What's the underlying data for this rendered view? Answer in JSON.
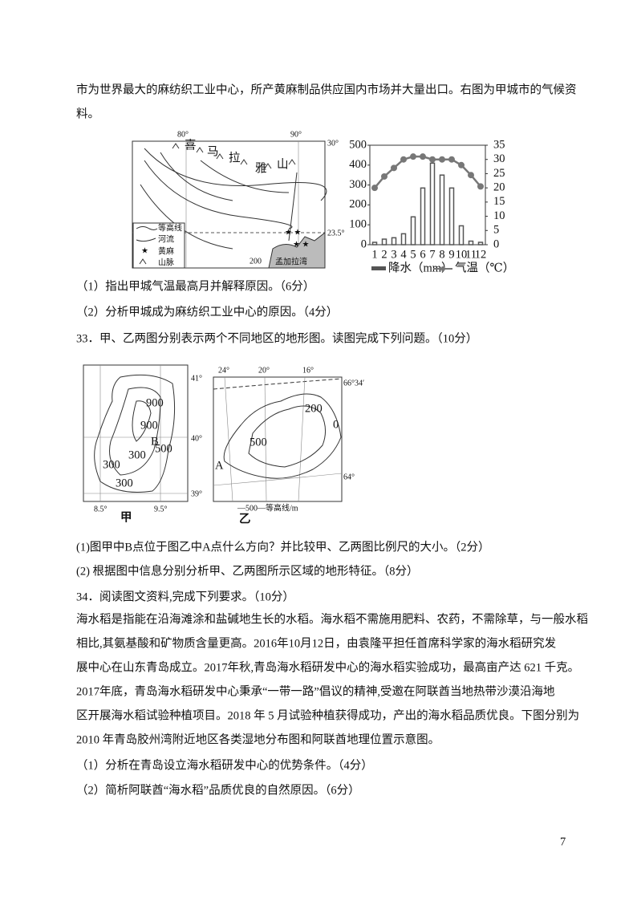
{
  "text_top": [
    "市为世界最大的麻纺织工业中心，所产黄麻制品供应国内市场并大量出口。右图为甲城市的气候资",
    "料。"
  ],
  "figure1": {
    "map": {
      "lon_labels": [
        "80°",
        "90°"
      ],
      "lat_labels": [
        "30°",
        "23.5°"
      ],
      "mountain_label": [
        "喜",
        "马",
        "拉",
        "雅",
        "山"
      ],
      "contour_label": "200",
      "bay": "孟加拉湾",
      "legend": [
        "等高线",
        "河流",
        "黄麻",
        "山脉"
      ]
    },
    "chart": {
      "type": "combo",
      "categories": [
        "1",
        "2",
        "3",
        "4",
        "5",
        "6",
        "7",
        "8",
        "9",
        "10",
        "11",
        "12"
      ],
      "series": [
        {
          "name": "降水（mm）",
          "color": "#555555",
          "values": [
            12,
            28,
            35,
            55,
            140,
            285,
            410,
            350,
            285,
            95,
            18,
            12
          ]
        },
        {
          "name": "气温（℃）",
          "color": "#777777",
          "axis": "y2",
          "values": [
            20,
            24,
            27,
            30,
            31,
            31,
            30,
            30,
            30,
            28,
            24.5,
            20.5
          ]
        }
      ],
      "ylim": [
        0,
        500
      ],
      "yticks": [
        0,
        100,
        200,
        300,
        400,
        500
      ],
      "y2lim": [
        0,
        35
      ],
      "y2ticks": [
        0,
        5,
        10,
        15,
        20,
        25,
        30,
        35
      ]
    }
  },
  "q32": [
    "（1）指出甲城气温最高月并解释原因。（6分）",
    "（2）分析甲城成为麻纺织工业中心的原因。（4分）"
  ],
  "q33": {
    "stem": "33．甲、乙两图分别表示两个不同地区的地形图。读图完成下列问题。（10分）",
    "map_jia": {
      "lat": [
        "41°",
        "40°",
        "39°"
      ],
      "lon": [
        "8.5°",
        "9.5°"
      ],
      "contours": [
        "900",
        "900",
        "500",
        "300",
        "300",
        "300"
      ],
      "point": "B",
      "caption": "甲"
    },
    "map_yi": {
      "lon": [
        "24°",
        "20°",
        "16°"
      ],
      "lat": [
        "66°34′",
        "64°"
      ],
      "contours": [
        "200",
        "0",
        "500"
      ],
      "point": "A",
      "legend": "—500—等高线/m",
      "caption": "乙"
    },
    "questions": [
      "(1)图甲中B点位于图乙中A点什么方向？并比较甲、乙两图比例尺的大小。（2分）",
      "(2) 根据图中信息分别分析甲、乙两图所示区域的地形特征。（8分）"
    ]
  },
  "q34": {
    "stem": "34．阅读图文资料,完成下列要求。（10分）",
    "passage": [
      "海水稻是指能在沿海滩涂和盐碱地生长的水稻。海水稻不需施用肥料、农药，不需除草，与一般水稻",
      "相比,其氨基酸和矿物质含量更高。2016年10月12日，由袁隆平担任首席科学家的海水稻研究发",
      "展中心在山东青岛成立。2017年秋,青岛海水稻研发中心的海水稻实验成功，最高亩产达 621 千克。",
      "2017年底，青岛海水稻研发中心秉承“一带一路”倡议的精神,受邀在阿联酋当地热带沙漠沿海地",
      "区开展海水稻试验种植项目。2018 年 5 月试验种植获得成功，产出的海水稻品质优良。下图分别为",
      "2010 年青岛胶州湾附近地区各类湿地分布图和阿联酋地理位置示意图。"
    ],
    "questions": [
      "（1）分析在青岛设立海水稻研发中心的优势条件。（4分）",
      "（2）简析阿联酋“海水稻”品质优良的自然原因。（6分）"
    ]
  },
  "page_number": "7"
}
